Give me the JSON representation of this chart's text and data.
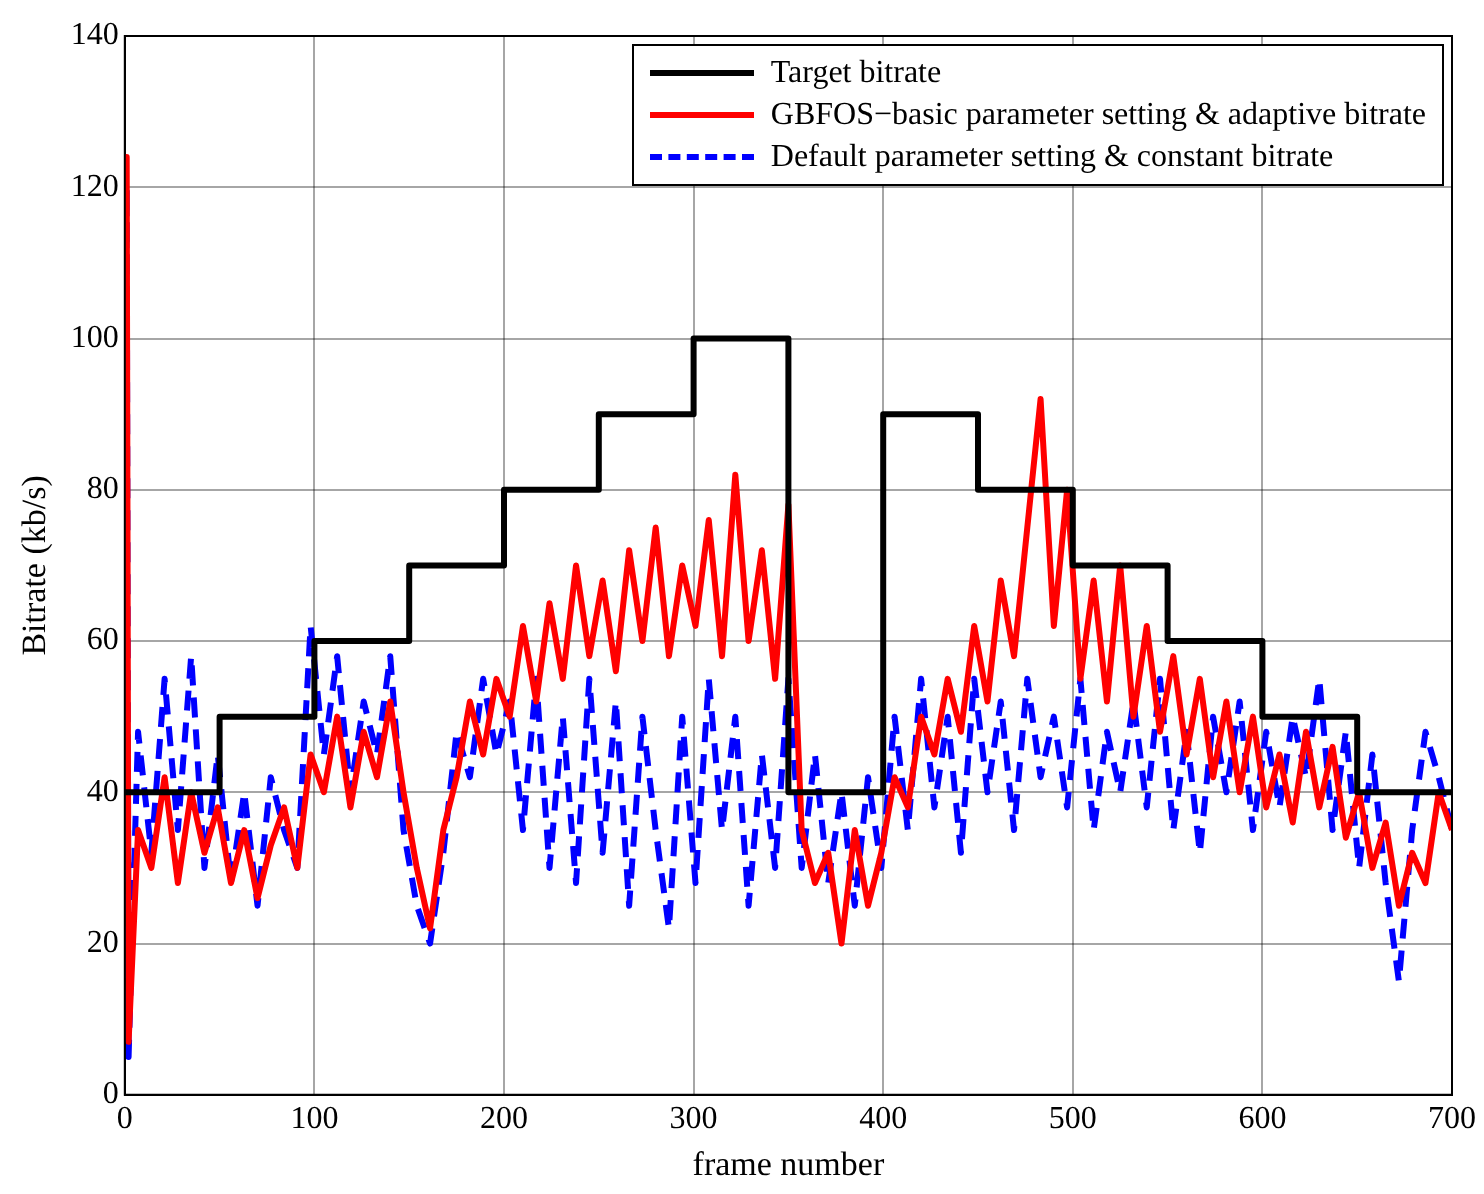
{
  "chart_data": {
    "type": "line",
    "xlabel": "frame number",
    "ylabel": "Bitrate (kb/s)",
    "xlim": [
      0,
      700
    ],
    "xticks": [
      0,
      100,
      200,
      300,
      400,
      500,
      600,
      700
    ],
    "ylim": [
      0,
      140
    ],
    "yticks": [
      0,
      20,
      40,
      60,
      80,
      100,
      120,
      140
    ],
    "grid": true,
    "legend": "top right",
    "marker": "none",
    "series": [
      {
        "name": "Target bitrate",
        "type": "step",
        "color": "#000000",
        "line_style": "solid",
        "x": [
          0,
          50,
          100,
          150,
          200,
          250,
          300,
          350,
          400,
          450,
          500,
          550,
          600,
          650,
          700
        ],
        "values": [
          40,
          50,
          60,
          70,
          80,
          90,
          100,
          40,
          90,
          80,
          70,
          60,
          50,
          40,
          40
        ]
      },
      {
        "name": "GBFOS−basic parameter setting & adaptive bitrate",
        "type": "line",
        "color": "#ff0000",
        "line_style": "solid",
        "x": [
          0,
          1,
          2,
          7,
          14,
          21,
          28,
          35,
          42,
          49,
          56,
          63,
          70,
          77,
          84,
          91,
          98,
          105,
          112,
          119,
          126,
          133,
          140,
          147,
          154,
          161,
          168,
          175,
          182,
          189,
          196,
          203,
          210,
          217,
          224,
          231,
          238,
          245,
          252,
          259,
          266,
          273,
          280,
          287,
          294,
          301,
          308,
          315,
          322,
          329,
          336,
          343,
          350,
          357,
          364,
          371,
          378,
          385,
          392,
          399,
          406,
          413,
          420,
          427,
          434,
          441,
          448,
          455,
          462,
          469,
          476,
          483,
          490,
          497,
          504,
          511,
          518,
          525,
          532,
          539,
          546,
          553,
          560,
          567,
          574,
          581,
          588,
          595,
          602,
          609,
          616,
          623,
          630,
          637,
          644,
          651,
          658,
          665,
          672,
          679,
          686,
          693,
          700
        ],
        "values": [
          40,
          124,
          7,
          35,
          30,
          42,
          28,
          40,
          32,
          38,
          28,
          35,
          26,
          33,
          38,
          30,
          45,
          40,
          50,
          38,
          48,
          42,
          52,
          40,
          30,
          22,
          35,
          42,
          52,
          45,
          55,
          50,
          62,
          52,
          65,
          55,
          70,
          58,
          68,
          56,
          72,
          60,
          75,
          58,
          70,
          62,
          76,
          58,
          82,
          60,
          72,
          55,
          78,
          35,
          28,
          32,
          20,
          35,
          25,
          32,
          42,
          38,
          50,
          45,
          55,
          48,
          62,
          52,
          68,
          58,
          75,
          92,
          62,
          80,
          55,
          68,
          52,
          70,
          50,
          62,
          48,
          58,
          45,
          55,
          42,
          52,
          40,
          50,
          38,
          45,
          36,
          48,
          38,
          46,
          34,
          40,
          30,
          36,
          25,
          32,
          28,
          40,
          35
        ]
      },
      {
        "name": "Default parameter setting & constant bitrate",
        "type": "line",
        "color": "#0000ff",
        "line_style": "dashed",
        "x": [
          0,
          1,
          2,
          7,
          14,
          21,
          28,
          35,
          42,
          49,
          56,
          63,
          70,
          77,
          84,
          91,
          98,
          105,
          112,
          119,
          126,
          133,
          140,
          147,
          154,
          161,
          168,
          175,
          182,
          189,
          196,
          203,
          210,
          217,
          224,
          231,
          238,
          245,
          252,
          259,
          266,
          273,
          280,
          287,
          294,
          301,
          308,
          315,
          322,
          329,
          336,
          343,
          350,
          357,
          364,
          371,
          378,
          385,
          392,
          399,
          406,
          413,
          420,
          427,
          434,
          441,
          448,
          455,
          462,
          469,
          476,
          483,
          490,
          497,
          504,
          511,
          518,
          525,
          532,
          539,
          546,
          553,
          560,
          567,
          574,
          581,
          588,
          595,
          602,
          609,
          616,
          623,
          630,
          637,
          644,
          651,
          658,
          665,
          672,
          679,
          686,
          693,
          700
        ],
        "values": [
          40,
          120,
          5,
          48,
          32,
          55,
          35,
          58,
          30,
          45,
          28,
          40,
          25,
          42,
          35,
          30,
          62,
          45,
          58,
          40,
          52,
          45,
          58,
          35,
          25,
          20,
          32,
          48,
          42,
          55,
          45,
          52,
          35,
          55,
          30,
          50,
          28,
          55,
          32,
          52,
          25,
          50,
          35,
          22,
          50,
          28,
          55,
          35,
          50,
          25,
          45,
          30,
          55,
          30,
          45,
          28,
          40,
          25,
          42,
          30,
          50,
          35,
          55,
          38,
          50,
          32,
          55,
          40,
          52,
          35,
          55,
          42,
          50,
          38,
          55,
          35,
          48,
          40,
          52,
          38,
          55,
          35,
          48,
          32,
          50,
          40,
          52,
          35,
          48,
          38,
          50,
          42,
          55,
          35,
          48,
          30,
          45,
          28,
          15,
          35,
          48,
          42,
          35
        ]
      }
    ]
  }
}
